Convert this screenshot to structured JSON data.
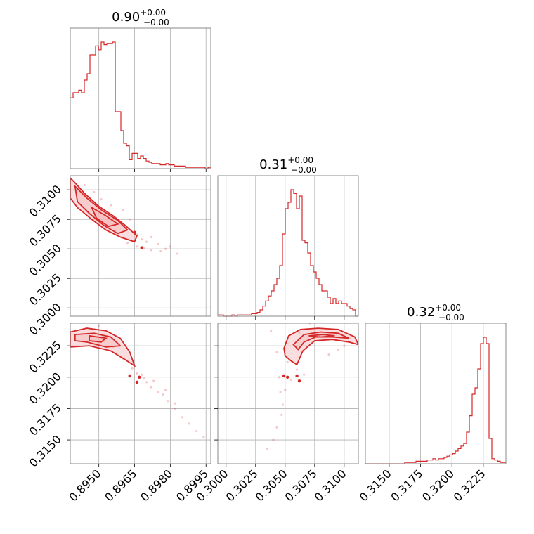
{
  "chart_data": {
    "type": "corner",
    "color": "#d62728",
    "fill_color": "#f4b6b8",
    "grid": true,
    "axis_ranges": {
      "p0": [
        0.8938,
        0.8997
      ],
      "p1": [
        0.2993,
        0.3112
      ],
      "p2": [
        0.3131,
        0.3243
      ]
    },
    "ticks": {
      "p0": [
        "0.8950",
        "0.8965",
        "0.8980",
        "0.8995"
      ],
      "p1": [
        "0.3000",
        "0.3025",
        "0.3050",
        "0.3075",
        "0.3100"
      ],
      "p2": [
        "0.3150",
        "0.3175",
        "0.3200",
        "0.3225"
      ]
    },
    "titles": [
      {
        "value": "0.90",
        "plus": "+0.00",
        "minus": "−0.00"
      },
      {
        "value": "0.31",
        "plus": "+0.00",
        "minus": "−0.00"
      },
      {
        "value": "0.32",
        "plus": "+0.00",
        "minus": "−0.00"
      }
    ],
    "hist_p0": {
      "bins": [
        0.8938,
        0.8997
      ],
      "values": [
        0.56,
        0.6,
        0.6,
        0.62,
        0.6,
        0.7,
        0.75,
        0.9,
        0.9,
        0.97,
        0.94,
        1.0,
        0.98,
        0.99,
        0.99,
        1.0,
        0.45,
        0.45,
        0.3,
        0.2,
        0.18,
        0.07,
        0.12,
        0.12,
        0.08,
        0.1,
        0.08,
        0.06,
        0.05,
        0.04,
        0.04,
        0.04,
        0.03,
        0.03,
        0.04,
        0.03,
        0.03,
        0.02,
        0.02,
        0.02,
        0.02,
        0.01,
        0.01,
        0.01,
        0.01,
        0.01,
        0.01,
        0.01,
        0.0,
        0.01
      ]
    },
    "hist_p1": {
      "bins": [
        0.2993,
        0.3112
      ],
      "values": [
        0.01,
        0.01,
        0.0,
        0.0,
        0.0,
        0.01,
        0.0,
        0.01,
        0.01,
        0.01,
        0.01,
        0.01,
        0.02,
        0.02,
        0.03,
        0.05,
        0.08,
        0.12,
        0.16,
        0.2,
        0.25,
        0.3,
        0.4,
        0.65,
        0.85,
        0.9,
        1.0,
        0.97,
        0.85,
        0.95,
        0.6,
        0.58,
        0.5,
        0.4,
        0.35,
        0.3,
        0.25,
        0.2,
        0.2,
        0.15,
        0.1,
        0.14,
        0.1,
        0.12,
        0.1,
        0.1,
        0.08,
        0.06,
        0.05,
        0.0
      ]
    },
    "hist_p2": {
      "bins": [
        0.3131,
        0.3243
      ],
      "values": [
        0.0,
        0.0,
        0.0,
        0.0,
        0.0,
        0.0,
        0.0,
        0.0,
        0.0,
        0.0,
        0.0,
        0.0,
        0.0,
        0.0,
        0.01,
        0.01,
        0.01,
        0.01,
        0.02,
        0.02,
        0.02,
        0.02,
        0.03,
        0.03,
        0.04,
        0.03,
        0.04,
        0.04,
        0.05,
        0.06,
        0.07,
        0.08,
        0.1,
        0.12,
        0.14,
        0.16,
        0.25,
        0.38,
        0.55,
        0.6,
        0.75,
        0.95,
        1.0,
        0.95,
        0.2,
        0.04,
        0.03,
        0.02,
        0.01,
        0.01
      ]
    },
    "contours": {
      "p0_p1": [
        [
          [
            0.8938,
            0.311
          ],
          [
            0.894,
            0.3106
          ],
          [
            0.8944,
            0.3097
          ],
          [
            0.895,
            0.3086
          ],
          [
            0.8956,
            0.3078
          ],
          [
            0.8961,
            0.307
          ],
          [
            0.8966,
            0.3061
          ],
          [
            0.8965,
            0.3056
          ],
          [
            0.8959,
            0.306
          ],
          [
            0.8953,
            0.3066
          ],
          [
            0.8947,
            0.3075
          ],
          [
            0.8941,
            0.3085
          ],
          [
            0.8938,
            0.3093
          ]
        ],
        [
          [
            0.894,
            0.3103
          ],
          [
            0.8945,
            0.3093
          ],
          [
            0.8951,
            0.3083
          ],
          [
            0.8958,
            0.3074
          ],
          [
            0.8962,
            0.3066
          ],
          [
            0.8958,
            0.3063
          ],
          [
            0.8952,
            0.307
          ],
          [
            0.8946,
            0.308
          ],
          [
            0.8941,
            0.309
          ]
        ],
        [
          [
            0.8947,
            0.3085
          ],
          [
            0.8953,
            0.3078
          ],
          [
            0.8958,
            0.3071
          ],
          [
            0.8954,
            0.3069
          ],
          [
            0.8949,
            0.3076
          ]
        ]
      ],
      "p0_p2": [
        [
          [
            0.8938,
            0.3236
          ],
          [
            0.8945,
            0.3239
          ],
          [
            0.8953,
            0.3237
          ],
          [
            0.8959,
            0.3231
          ],
          [
            0.8963,
            0.322
          ],
          [
            0.8965,
            0.3209
          ],
          [
            0.8961,
            0.3214
          ],
          [
            0.8955,
            0.3221
          ],
          [
            0.8946,
            0.3225
          ],
          [
            0.8938,
            0.3224
          ]
        ],
        [
          [
            0.894,
            0.3234
          ],
          [
            0.8948,
            0.3235
          ],
          [
            0.8955,
            0.3232
          ],
          [
            0.8959,
            0.3225
          ],
          [
            0.8953,
            0.3224
          ],
          [
            0.8945,
            0.3228
          ],
          [
            0.894,
            0.3229
          ]
        ],
        [
          [
            0.8946,
            0.3233
          ],
          [
            0.8953,
            0.3231
          ],
          [
            0.8951,
            0.3228
          ],
          [
            0.8946,
            0.3229
          ]
        ]
      ],
      "p1_p2": [
        [
          [
            0.3049,
            0.3223
          ],
          [
            0.3053,
            0.3233
          ],
          [
            0.3063,
            0.3238
          ],
          [
            0.3078,
            0.3239
          ],
          [
            0.3095,
            0.3238
          ],
          [
            0.3109,
            0.3232
          ],
          [
            0.3112,
            0.3226
          ],
          [
            0.3104,
            0.3228
          ],
          [
            0.309,
            0.323
          ],
          [
            0.3075,
            0.3229
          ],
          [
            0.3065,
            0.3221
          ],
          [
            0.306,
            0.321
          ],
          [
            0.3055,
            0.3213
          ],
          [
            0.305,
            0.3217
          ]
        ],
        [
          [
            0.3057,
            0.3226
          ],
          [
            0.3066,
            0.3234
          ],
          [
            0.308,
            0.3236
          ],
          [
            0.3095,
            0.3235
          ],
          [
            0.3104,
            0.3231
          ],
          [
            0.309,
            0.3232
          ],
          [
            0.3076,
            0.3232
          ],
          [
            0.3066,
            0.3228
          ],
          [
            0.3061,
            0.3222
          ]
        ],
        [
          [
            0.307,
            0.3233
          ],
          [
            0.3082,
            0.3234
          ],
          [
            0.3092,
            0.3233
          ],
          [
            0.308,
            0.3232
          ]
        ]
      ]
    },
    "scatter": {
      "p0_p1": [
        [
          0.8944,
          0.3104
        ],
        [
          0.8948,
          0.3098
        ],
        [
          0.8951,
          0.3092
        ],
        [
          0.8955,
          0.3087
        ],
        [
          0.896,
          0.3083
        ],
        [
          0.8963,
          0.3075
        ],
        [
          0.8966,
          0.3062
        ],
        [
          0.8968,
          0.3058
        ],
        [
          0.897,
          0.3056
        ],
        [
          0.8972,
          0.306
        ],
        [
          0.8975,
          0.3054
        ],
        [
          0.8978,
          0.305
        ],
        [
          0.898,
          0.3052
        ],
        [
          0.8983,
          0.3046
        ],
        [
          0.8966,
          0.3052
        ],
        [
          0.8969,
          0.3051
        ],
        [
          0.8962,
          0.3055
        ],
        [
          0.8957,
          0.3066
        ],
        [
          0.8972,
          0.3049
        ],
        [
          0.8976,
          0.3048
        ]
      ],
      "p0_p2": [
        [
          0.895,
          0.3241
        ],
        [
          0.8956,
          0.3224
        ],
        [
          0.896,
          0.3215
        ],
        [
          0.8964,
          0.3207
        ],
        [
          0.8966,
          0.3203
        ],
        [
          0.8969,
          0.3199
        ],
        [
          0.897,
          0.3196
        ],
        [
          0.8972,
          0.3192
        ],
        [
          0.8975,
          0.3188
        ],
        [
          0.8977,
          0.3186
        ],
        [
          0.8979,
          0.3181
        ],
        [
          0.8982,
          0.3175
        ],
        [
          0.8985,
          0.3168
        ],
        [
          0.8988,
          0.3163
        ],
        [
          0.8991,
          0.3157
        ],
        [
          0.8994,
          0.3152
        ],
        [
          0.8978,
          0.319
        ],
        [
          0.8982,
          0.3179
        ],
        [
          0.8968,
          0.3202
        ],
        [
          0.8973,
          0.3197
        ]
      ],
      "p1_p2": [
        [
          0.3038,
          0.3237
        ],
        [
          0.3043,
          0.322
        ],
        [
          0.3045,
          0.32
        ],
        [
          0.3046,
          0.3188
        ],
        [
          0.3048,
          0.3178
        ],
        [
          0.305,
          0.319
        ],
        [
          0.3052,
          0.3212
        ],
        [
          0.3043,
          0.316
        ],
        [
          0.304,
          0.315
        ],
        [
          0.3035,
          0.3143
        ],
        [
          0.3055,
          0.3198
        ],
        [
          0.3062,
          0.3235
        ],
        [
          0.3071,
          0.3243
        ],
        [
          0.3087,
          0.3218
        ],
        [
          0.3095,
          0.3222
        ],
        [
          0.31,
          0.3225
        ],
        [
          0.3105,
          0.3231
        ],
        [
          0.306,
          0.3206
        ],
        [
          0.3066,
          0.3202
        ],
        [
          0.3047,
          0.317
        ]
      ]
    },
    "markers": {
      "p0_p1": [
        [
          0.8965,
          0.3064
        ],
        [
          0.8968,
          0.3051
        ]
      ],
      "p0_p2": [
        [
          0.8963,
          0.3201
        ],
        [
          0.8967,
          0.32
        ],
        [
          0.8966,
          0.3196
        ]
      ],
      "p1_p2": [
        [
          0.3049,
          0.3201
        ],
        [
          0.3052,
          0.32
        ],
        [
          0.306,
          0.3201
        ],
        [
          0.3062,
          0.3197
        ]
      ]
    }
  }
}
